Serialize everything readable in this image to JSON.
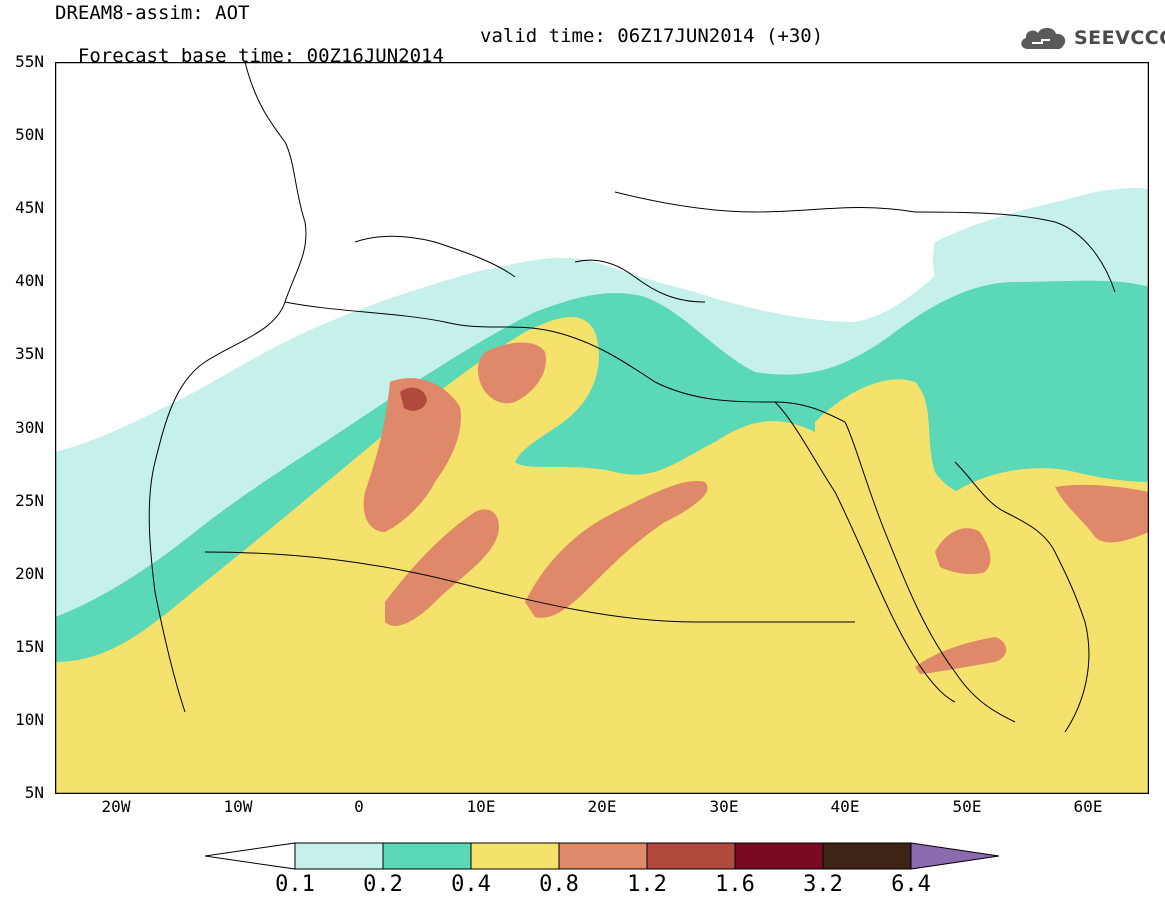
{
  "title": {
    "line1": "DREAM8-assim: AOT",
    "base_time": "Forecast base time: 00Z16JUN2014",
    "valid_time": "valid time: 06Z17JUN2014 (+30)"
  },
  "logo": {
    "text": "SEEVCCC",
    "icon": "cloud-icon"
  },
  "map": {
    "variable": "AOT",
    "lon_range": [
      -25,
      65
    ],
    "lat_range": [
      5,
      55
    ],
    "lat_ticks": [
      "55N",
      "50N",
      "45N",
      "40N",
      "35N",
      "30N",
      "25N",
      "20N",
      "15N",
      "10N",
      "5N"
    ],
    "lon_ticks": [
      "20W",
      "10W",
      "0",
      "10E",
      "20E",
      "30E",
      "40E",
      "50E",
      "60E"
    ]
  },
  "colorbar": {
    "levels": [
      "0.1",
      "0.2",
      "0.4",
      "0.8",
      "1.2",
      "1.6",
      "3.2",
      "6.4"
    ],
    "colors": [
      "#ffffff",
      "#c6f0ea",
      "#5ad8b8",
      "#f5e26c",
      "#e0896a",
      "#b04a3c",
      "#7a0a24",
      "#3e2414",
      "#8c6ab0"
    ]
  }
}
